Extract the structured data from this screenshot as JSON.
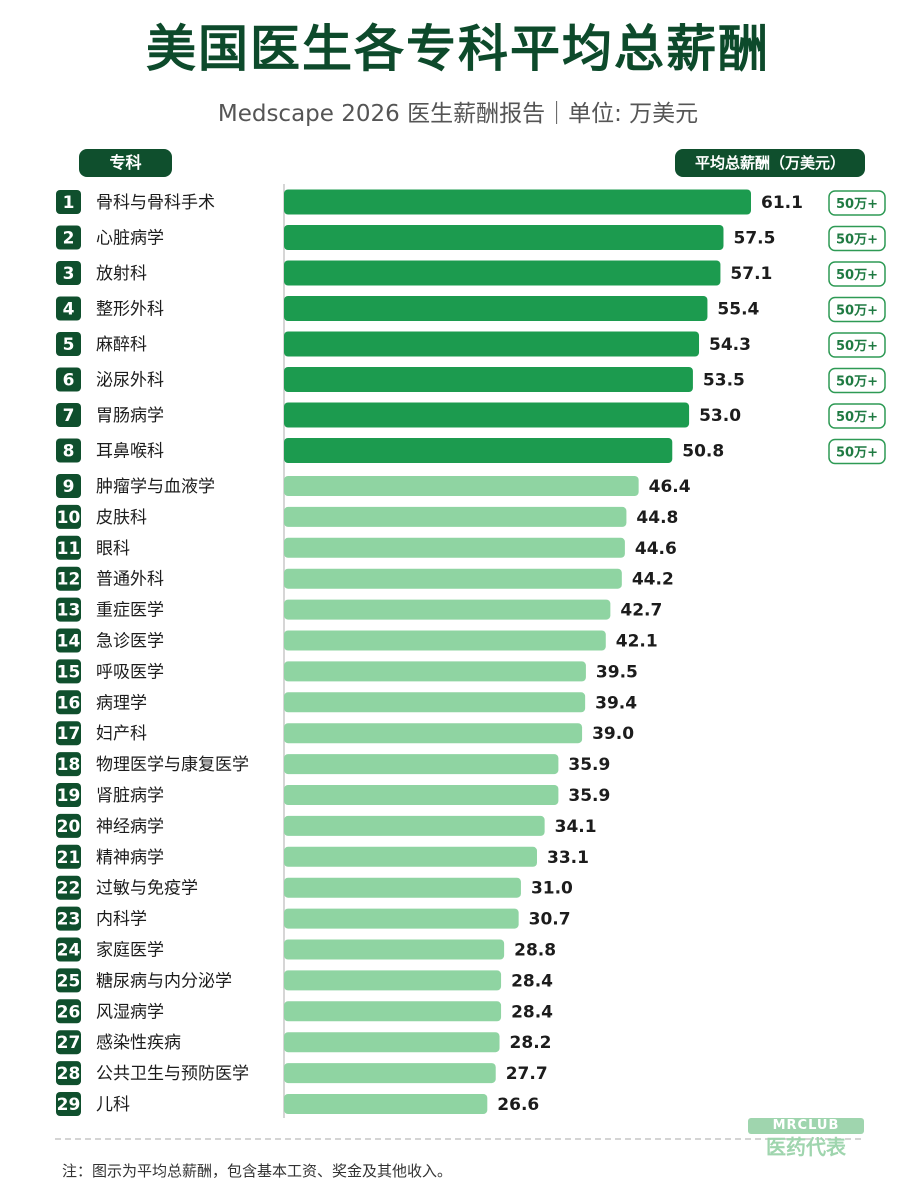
{
  "title": "美国医生各专科平均总薪酬",
  "subtitle": "Medscape 2026 医生薪酬报告｜单位: 万美元",
  "header_left": "专科",
  "header_right": "平均总薪酬（万美元）",
  "badge_label": "50万+",
  "colors": {
    "dark_green": "#1c9b4f",
    "light_green": "#8fd4a2",
    "header_green": "#0f4f2d"
  },
  "chart_data": {
    "type": "bar",
    "orientation": "horizontal",
    "categories": [
      "骨科与骨科手术",
      "心脏病学",
      "放射科",
      "整形外科",
      "麻醉科",
      "泌尿外科",
      "胃肠病学",
      "耳鼻喉科",
      "肿瘤学与血液学",
      "皮肤科",
      "眼科",
      "普通外科",
      "重症医学",
      "急诊医学",
      "呼吸医学",
      "病理学",
      "妇产科",
      "物理医学与康复医学",
      "肾脏病学",
      "神经病学",
      "精神病学",
      "过敏与免疫学",
      "内科学",
      "家庭医学",
      "糖尿病与内分泌学",
      "风湿病学",
      "感染性疾病",
      "公共卫生与预防医学",
      "儿科"
    ],
    "values": [
      61.1,
      57.5,
      57.1,
      55.4,
      54.3,
      53.5,
      53.0,
      50.8,
      46.4,
      44.8,
      44.6,
      44.2,
      42.7,
      42.1,
      39.5,
      39.4,
      39.0,
      35.9,
      35.9,
      34.1,
      33.1,
      31.0,
      30.7,
      28.8,
      28.4,
      28.4,
      28.2,
      27.7,
      26.6
    ],
    "value_labels": [
      "61.1",
      "57.5",
      "57.1",
      "55.4",
      "54.3",
      "53.5",
      "53.0",
      "50.8",
      "46.4",
      "44.8",
      "44.6",
      "44.2",
      "42.7",
      "42.1",
      "39.5",
      "39.4",
      "39.0",
      "35.9",
      "35.9",
      "34.1",
      "33.1",
      "31.0",
      "30.7",
      "28.8",
      "28.4",
      "28.4",
      "28.2",
      "27.7",
      "26.6"
    ],
    "ranks": [
      "1",
      "2",
      "3",
      "4",
      "5",
      "6",
      "7",
      "8",
      "9",
      "10",
      "11",
      "12",
      "13",
      "14",
      "15",
      "16",
      "17",
      "18",
      "19",
      "20",
      "21",
      "22",
      "23",
      "24",
      "25",
      "26",
      "27",
      "28",
      "29"
    ],
    "highlight_threshold": 50,
    "xlim": [
      0,
      65
    ]
  },
  "logo": {
    "top": "MRCLUB",
    "bottom": "医药代表"
  },
  "footnote": "注：图示为平均总薪酬，包含基本工资、奖金及其他收入。"
}
